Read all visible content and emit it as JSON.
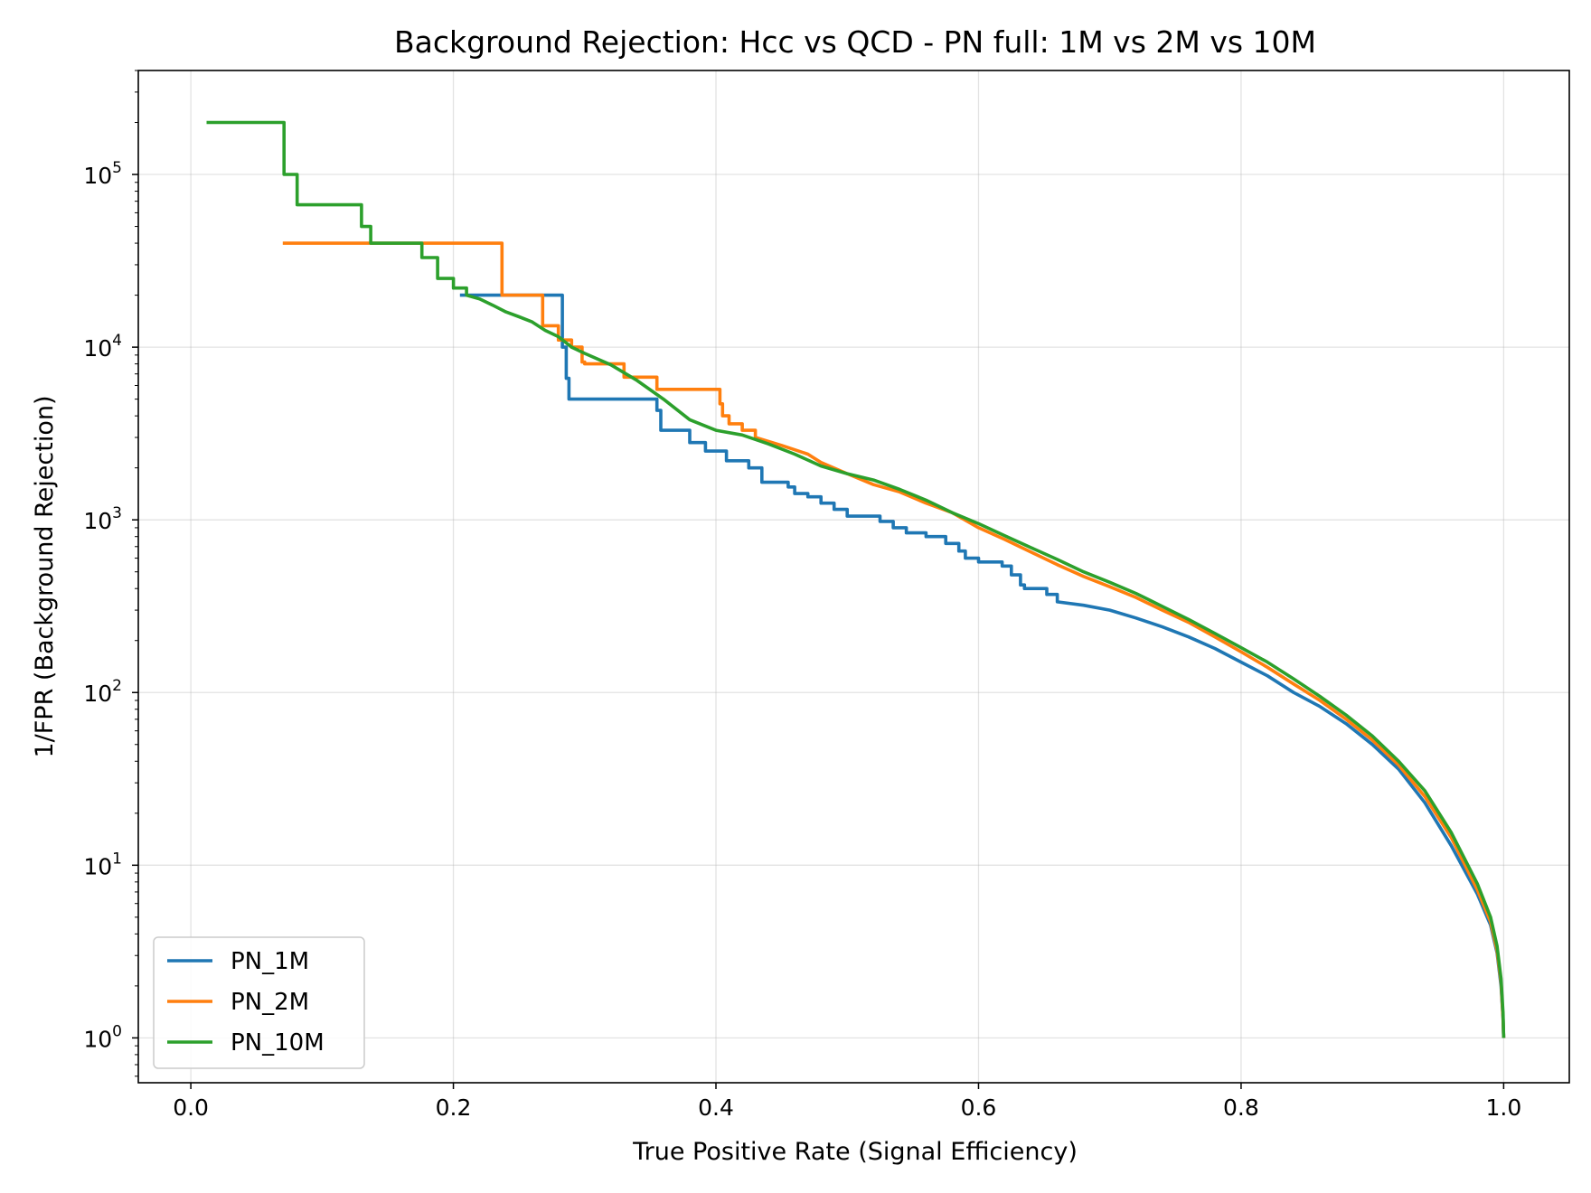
{
  "chart_data": {
    "type": "line",
    "title": "Background Rejection: Hcc vs QCD - PN full: 1M vs 2M vs 10M",
    "xlabel": "True Positive Rate (Signal Efficiency)",
    "ylabel": "1/FPR (Background Rejection)",
    "xlim": [
      -0.04,
      1.05
    ],
    "ylim": [
      0.55,
      400000
    ],
    "yscale": "log",
    "x_ticks": [
      {
        "value": 0.0,
        "label": "0.0"
      },
      {
        "value": 0.2,
        "label": "0.2"
      },
      {
        "value": 0.4,
        "label": "0.4"
      },
      {
        "value": 0.6,
        "label": "0.6"
      },
      {
        "value": 0.8,
        "label": "0.8"
      },
      {
        "value": 1.0,
        "label": "1.0"
      }
    ],
    "y_ticks": [
      {
        "value": 1,
        "base": "10",
        "exp": "0"
      },
      {
        "value": 10,
        "base": "10",
        "exp": "1"
      },
      {
        "value": 100,
        "base": "10",
        "exp": "2"
      },
      {
        "value": 1000,
        "base": "10",
        "exp": "3"
      },
      {
        "value": 10000,
        "base": "10",
        "exp": "4"
      },
      {
        "value": 100000,
        "base": "10",
        "exp": "5"
      }
    ],
    "grid": true,
    "legend_position": "bottom-left",
    "series": [
      {
        "name": "PN_1M",
        "color": "#1f77b4",
        "points": [
          [
            0.205,
            20000
          ],
          [
            0.283,
            20000
          ],
          [
            0.283,
            10000
          ],
          [
            0.286,
            10000
          ],
          [
            0.286,
            6600
          ],
          [
            0.288,
            6600
          ],
          [
            0.288,
            5000
          ],
          [
            0.355,
            5000
          ],
          [
            0.355,
            4300
          ],
          [
            0.358,
            4300
          ],
          [
            0.358,
            3300
          ],
          [
            0.38,
            3300
          ],
          [
            0.38,
            2800
          ],
          [
            0.392,
            2800
          ],
          [
            0.392,
            2500
          ],
          [
            0.408,
            2500
          ],
          [
            0.408,
            2200
          ],
          [
            0.425,
            2200
          ],
          [
            0.425,
            2000
          ],
          [
            0.435,
            2000
          ],
          [
            0.435,
            1650
          ],
          [
            0.455,
            1650
          ],
          [
            0.455,
            1550
          ],
          [
            0.46,
            1550
          ],
          [
            0.46,
            1420
          ],
          [
            0.47,
            1420
          ],
          [
            0.47,
            1360
          ],
          [
            0.48,
            1360
          ],
          [
            0.48,
            1250
          ],
          [
            0.49,
            1250
          ],
          [
            0.49,
            1150
          ],
          [
            0.5,
            1150
          ],
          [
            0.5,
            1050
          ],
          [
            0.525,
            1050
          ],
          [
            0.525,
            980
          ],
          [
            0.535,
            980
          ],
          [
            0.535,
            900
          ],
          [
            0.545,
            900
          ],
          [
            0.545,
            840
          ],
          [
            0.56,
            840
          ],
          [
            0.56,
            800
          ],
          [
            0.575,
            800
          ],
          [
            0.575,
            730
          ],
          [
            0.585,
            730
          ],
          [
            0.585,
            660
          ],
          [
            0.59,
            660
          ],
          [
            0.59,
            600
          ],
          [
            0.6,
            600
          ],
          [
            0.6,
            570
          ],
          [
            0.618,
            570
          ],
          [
            0.618,
            540
          ],
          [
            0.625,
            540
          ],
          [
            0.625,
            480
          ],
          [
            0.632,
            480
          ],
          [
            0.632,
            420
          ],
          [
            0.635,
            420
          ],
          [
            0.635,
            400
          ],
          [
            0.652,
            400
          ],
          [
            0.652,
            370
          ],
          [
            0.66,
            370
          ],
          [
            0.66,
            335
          ],
          [
            0.68,
            320
          ],
          [
            0.7,
            300
          ],
          [
            0.72,
            270
          ],
          [
            0.74,
            240
          ],
          [
            0.76,
            210
          ],
          [
            0.78,
            180
          ],
          [
            0.8,
            150
          ],
          [
            0.82,
            125
          ],
          [
            0.84,
            100
          ],
          [
            0.86,
            83
          ],
          [
            0.88,
            66
          ],
          [
            0.9,
            50
          ],
          [
            0.92,
            36
          ],
          [
            0.94,
            23
          ],
          [
            0.96,
            13
          ],
          [
            0.98,
            6.8
          ],
          [
            0.99,
            4.5
          ],
          [
            0.995,
            3.1
          ],
          [
            0.998,
            2.0
          ],
          [
            0.9995,
            1.3
          ],
          [
            1.0,
            1.0
          ]
        ]
      },
      {
        "name": "PN_2M",
        "color": "#ff7f0e",
        "points": [
          [
            0.07,
            40000
          ],
          [
            0.237,
            40000
          ],
          [
            0.237,
            20000
          ],
          [
            0.268,
            20000
          ],
          [
            0.268,
            13300
          ],
          [
            0.28,
            13300
          ],
          [
            0.28,
            11000
          ],
          [
            0.29,
            11000
          ],
          [
            0.29,
            10000
          ],
          [
            0.298,
            10000
          ],
          [
            0.298,
            8200
          ],
          [
            0.3,
            8200
          ],
          [
            0.3,
            8000
          ],
          [
            0.33,
            8000
          ],
          [
            0.33,
            6700
          ],
          [
            0.355,
            6700
          ],
          [
            0.355,
            5700
          ],
          [
            0.403,
            5700
          ],
          [
            0.403,
            4700
          ],
          [
            0.405,
            4700
          ],
          [
            0.405,
            4000
          ],
          [
            0.41,
            4000
          ],
          [
            0.41,
            3600
          ],
          [
            0.42,
            3600
          ],
          [
            0.42,
            3300
          ],
          [
            0.43,
            3300
          ],
          [
            0.43,
            3000
          ],
          [
            0.45,
            2700
          ],
          [
            0.47,
            2400
          ],
          [
            0.48,
            2150
          ],
          [
            0.5,
            1850
          ],
          [
            0.52,
            1600
          ],
          [
            0.54,
            1450
          ],
          [
            0.56,
            1250
          ],
          [
            0.58,
            1100
          ],
          [
            0.6,
            900
          ],
          [
            0.62,
            770
          ],
          [
            0.64,
            650
          ],
          [
            0.66,
            550
          ],
          [
            0.68,
            470
          ],
          [
            0.7,
            410
          ],
          [
            0.72,
            355
          ],
          [
            0.74,
            300
          ],
          [
            0.76,
            255
          ],
          [
            0.78,
            210
          ],
          [
            0.8,
            172
          ],
          [
            0.82,
            140
          ],
          [
            0.84,
            112
          ],
          [
            0.86,
            90
          ],
          [
            0.88,
            70
          ],
          [
            0.9,
            53
          ],
          [
            0.92,
            38
          ],
          [
            0.94,
            25
          ],
          [
            0.96,
            14.5
          ],
          [
            0.98,
            7.2
          ],
          [
            0.99,
            4.7
          ],
          [
            0.995,
            3.2
          ],
          [
            0.998,
            2.1
          ],
          [
            0.9995,
            1.3
          ],
          [
            1.0,
            1.0
          ]
        ]
      },
      {
        "name": "PN_10M",
        "color": "#2ca02c",
        "points": [
          [
            0.012,
            200000
          ],
          [
            0.071,
            200000
          ],
          [
            0.071,
            100000
          ],
          [
            0.081,
            100000
          ],
          [
            0.081,
            66700
          ],
          [
            0.13,
            66700
          ],
          [
            0.13,
            50000
          ],
          [
            0.137,
            50000
          ],
          [
            0.137,
            40000
          ],
          [
            0.176,
            40000
          ],
          [
            0.176,
            33000
          ],
          [
            0.188,
            33000
          ],
          [
            0.188,
            25000
          ],
          [
            0.2,
            25000
          ],
          [
            0.2,
            22000
          ],
          [
            0.21,
            22000
          ],
          [
            0.21,
            20000
          ],
          [
            0.22,
            19000
          ],
          [
            0.23,
            17500
          ],
          [
            0.24,
            16000
          ],
          [
            0.25,
            15000
          ],
          [
            0.26,
            14000
          ],
          [
            0.27,
            12500
          ],
          [
            0.28,
            11500
          ],
          [
            0.29,
            10000
          ],
          [
            0.3,
            9200
          ],
          [
            0.32,
            7900
          ],
          [
            0.34,
            6400
          ],
          [
            0.36,
            5000
          ],
          [
            0.38,
            3800
          ],
          [
            0.4,
            3300
          ],
          [
            0.42,
            3100
          ],
          [
            0.44,
            2750
          ],
          [
            0.46,
            2400
          ],
          [
            0.48,
            2050
          ],
          [
            0.5,
            1850
          ],
          [
            0.52,
            1700
          ],
          [
            0.54,
            1500
          ],
          [
            0.56,
            1300
          ],
          [
            0.58,
            1100
          ],
          [
            0.6,
            950
          ],
          [
            0.62,
            810
          ],
          [
            0.64,
            690
          ],
          [
            0.66,
            590
          ],
          [
            0.68,
            500
          ],
          [
            0.7,
            435
          ],
          [
            0.72,
            375
          ],
          [
            0.74,
            315
          ],
          [
            0.76,
            265
          ],
          [
            0.78,
            220
          ],
          [
            0.8,
            182
          ],
          [
            0.82,
            150
          ],
          [
            0.84,
            120
          ],
          [
            0.86,
            95
          ],
          [
            0.88,
            74
          ],
          [
            0.9,
            56
          ],
          [
            0.92,
            40
          ],
          [
            0.94,
            27
          ],
          [
            0.96,
            15.5
          ],
          [
            0.98,
            7.8
          ],
          [
            0.99,
            5.0
          ],
          [
            0.995,
            3.4
          ],
          [
            0.998,
            2.2
          ],
          [
            0.9995,
            1.4
          ],
          [
            1.0,
            1.0
          ]
        ]
      }
    ]
  }
}
